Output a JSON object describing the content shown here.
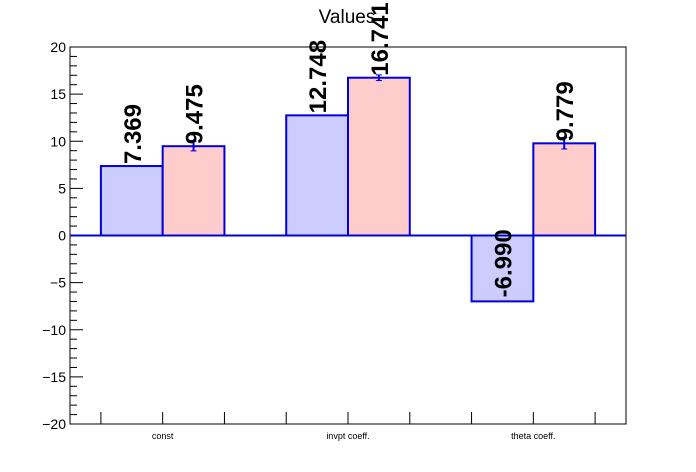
{
  "chart_data": {
    "type": "bar",
    "title": "Values",
    "categories": [
      "const",
      "invpt coeff.",
      "theta coeff."
    ],
    "series": [
      {
        "values": [
          7.369,
          12.748,
          -6.99
        ],
        "labels": [
          "7.369",
          "12.748",
          "-6.990"
        ],
        "errors": [
          0,
          0,
          0
        ],
        "fill": "#ccccff",
        "stroke": "#0000dd"
      },
      {
        "values": [
          9.475,
          16.741,
          9.779
        ],
        "labels": [
          "9.475",
          "16.741",
          "9.779"
        ],
        "errors": [
          0.5,
          0.3,
          0.6
        ],
        "fill": "#ffcccc",
        "stroke": "#0000dd"
      }
    ],
    "ylim": [
      -20,
      20
    ],
    "yticks": [
      -20,
      -15,
      -10,
      -5,
      0,
      5,
      10,
      15,
      20
    ],
    "ytick_labels": [
      "−20",
      "−15",
      "−10",
      "−5",
      "0",
      "5",
      "10",
      "15",
      "20"
    ],
    "baseline_color": "#0000dd",
    "grid": false,
    "legend": "none"
  }
}
